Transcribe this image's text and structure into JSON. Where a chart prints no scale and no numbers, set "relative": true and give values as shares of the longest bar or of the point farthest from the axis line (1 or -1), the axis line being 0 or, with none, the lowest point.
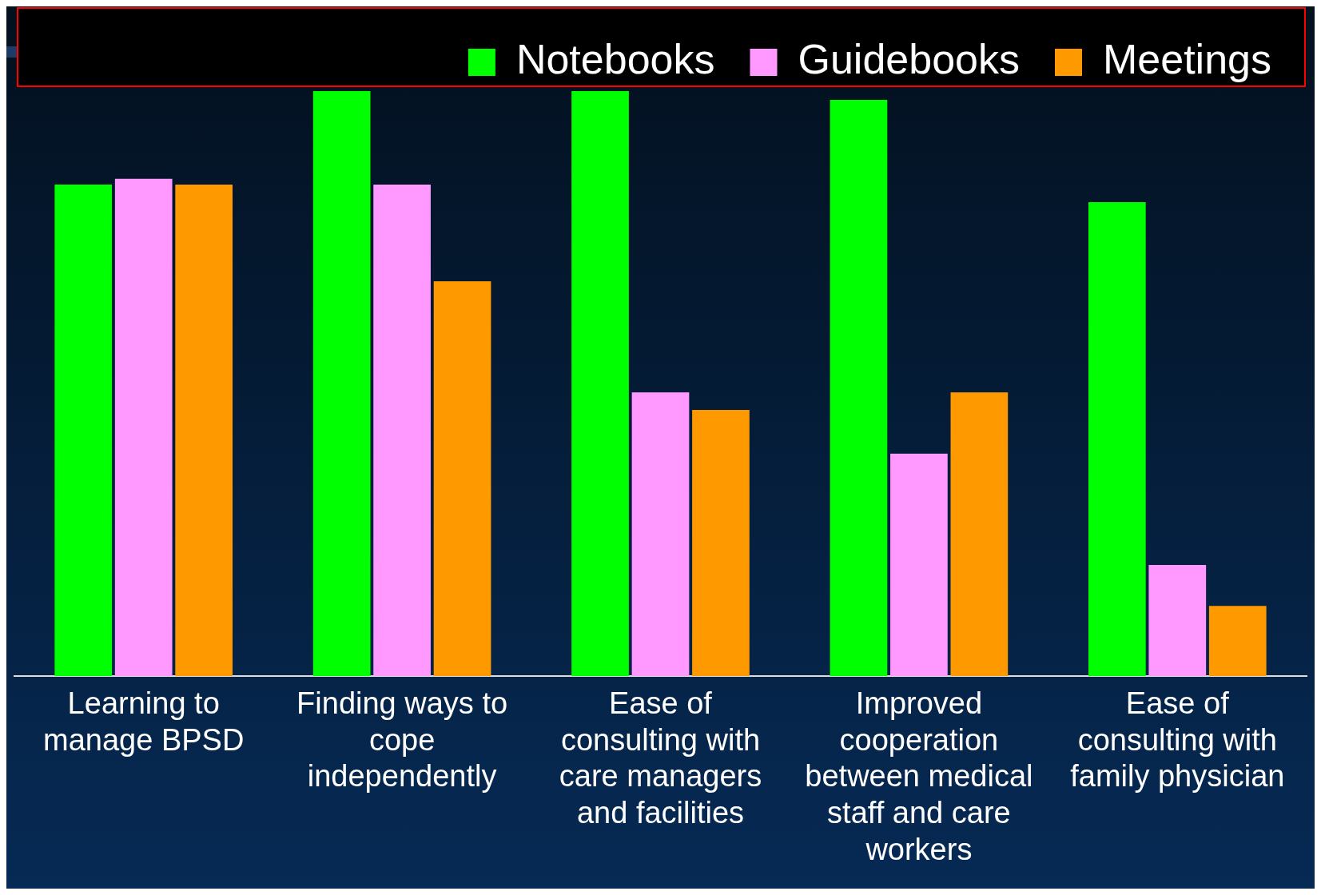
{
  "chart_data": {
    "type": "bar",
    "relative": true,
    "categories": [
      "Learning to manage BPSD",
      "Finding ways to cope independently",
      "Ease of consulting with care managers and facilities",
      "Improved cooperation between medical staff and care workers",
      "Ease of consulting with family physician"
    ],
    "series": [
      {
        "name": "Notebooks",
        "color": "#00ff00",
        "values": [
          0.84,
          1,
          1,
          0.985,
          0.81
        ]
      },
      {
        "name": "Guidebooks",
        "color": "#ff99ff",
        "values": [
          0.85,
          0.84,
          0.485,
          0.38,
          0.19
        ]
      },
      {
        "name": "Meetings",
        "color": "#ff9900",
        "values": [
          0.84,
          0.675,
          0.455,
          0.485,
          0.12
        ]
      }
    ],
    "legend": "top right",
    "grid": false
  }
}
